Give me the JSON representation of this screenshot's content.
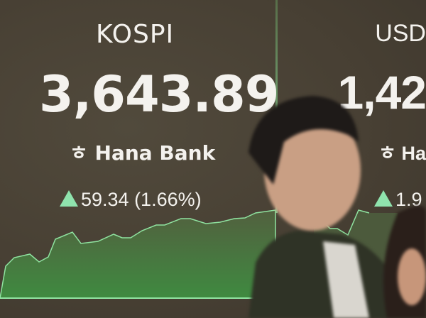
{
  "board": {
    "kospi": {
      "label": "KOSPI",
      "value": "3,643.89",
      "sponsor": "Hana Bank",
      "change": "59.34 (1.66%)",
      "direction": "up"
    },
    "usd": {
      "label": "USD",
      "value": "1,42",
      "sponsor": "Ha",
      "change": "1.9",
      "direction": "up"
    }
  },
  "colors": {
    "background": "#4a4438",
    "up_accent": "#8fe3ad",
    "chart_fill": "#3f7a3a",
    "text": "#f4f2ee"
  },
  "icons": {
    "bank_logo": "hana-bank-logo-icon",
    "change_arrow": "triangle-up-icon"
  }
}
